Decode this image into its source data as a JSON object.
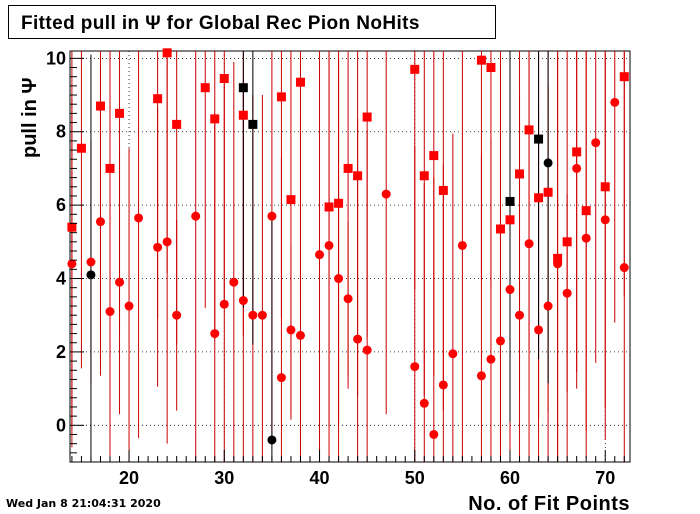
{
  "title": "Fitted pull in  Ψ  for Global Rec Pion NoHits",
  "footer_date": "Wed Jan  8 21:04:31 2020",
  "colors": {
    "primary_series": "#ff0000",
    "secondary_series": "#000000",
    "error_bar": "#cc0000"
  },
  "chart_data": {
    "type": "scatter",
    "title": "Fitted pull in  Ψ  for Global Rec Pion NoHits",
    "xlabel": "No. of Fit Points",
    "ylabel": "pull in  Ψ",
    "xlim": [
      13.8,
      72.6
    ],
    "ylim": [
      -1.0,
      10.2
    ],
    "xticks": [
      20,
      30,
      40,
      50,
      60,
      70
    ],
    "yticks": [
      0,
      2,
      4,
      6,
      8,
      10
    ],
    "grid": true,
    "series": [
      {
        "marker": "square",
        "color": "#ff0000",
        "points": [
          {
            "x": 14,
            "y": 5.4,
            "e": 6
          },
          {
            "x": 15,
            "y": 7.55,
            "e": 6
          },
          {
            "x": 17,
            "y": 8.7,
            "e": 6
          },
          {
            "x": 18,
            "y": 7.0,
            "e": 6
          },
          {
            "x": 19,
            "y": 8.5,
            "e": 6
          },
          {
            "x": 23,
            "y": 8.9,
            "e": 6
          },
          {
            "x": 24,
            "y": 10.15,
            "e": 6
          },
          {
            "x": 25,
            "y": 8.2,
            "e": 6
          },
          {
            "x": 28,
            "y": 9.2,
            "e": 6
          },
          {
            "x": 29,
            "y": 8.35,
            "e": 6
          },
          {
            "x": 30,
            "y": 9.45,
            "e": 6
          },
          {
            "x": 32,
            "y": 8.45,
            "e": 6
          },
          {
            "x": 36,
            "y": 8.95,
            "e": 6
          },
          {
            "x": 37,
            "y": 6.15,
            "e": 6
          },
          {
            "x": 38,
            "y": 9.35,
            "e": 6
          },
          {
            "x": 41,
            "y": 5.95,
            "e": 6
          },
          {
            "x": 42,
            "y": 6.05,
            "e": 6
          },
          {
            "x": 43,
            "y": 7.0,
            "e": 6
          },
          {
            "x": 44,
            "y": 6.8,
            "e": 6
          },
          {
            "x": 45,
            "y": 8.4,
            "e": 6
          },
          {
            "x": 50,
            "y": 9.7,
            "e": 6
          },
          {
            "x": 51,
            "y": 6.8,
            "e": 6
          },
          {
            "x": 52,
            "y": 7.35,
            "e": 6
          },
          {
            "x": 53,
            "y": 6.4,
            "e": 6
          },
          {
            "x": 57,
            "y": 9.95,
            "e": 6
          },
          {
            "x": 58,
            "y": 9.75,
            "e": 6
          },
          {
            "x": 59,
            "y": 5.35,
            "e": 6
          },
          {
            "x": 60,
            "y": 5.6,
            "e": 6
          },
          {
            "x": 61,
            "y": 6.85,
            "e": 6
          },
          {
            "x": 62,
            "y": 8.05,
            "e": 6
          },
          {
            "x": 63,
            "y": 6.2,
            "e": 6
          },
          {
            "x": 64,
            "y": 6.35,
            "e": 6
          },
          {
            "x": 65,
            "y": 4.55,
            "e": 6
          },
          {
            "x": 66,
            "y": 5.0,
            "e": 6
          },
          {
            "x": 67,
            "y": 7.45,
            "e": 6
          },
          {
            "x": 68,
            "y": 5.85,
            "e": 6
          },
          {
            "x": 70,
            "y": 6.5,
            "e": 6
          },
          {
            "x": 72,
            "y": 9.5,
            "e": 6
          }
        ]
      },
      {
        "marker": "circle",
        "color": "#ff0000",
        "points": [
          {
            "x": 14,
            "y": 4.4,
            "e": 4.5
          },
          {
            "x": 16,
            "y": 4.45,
            "e": 3.3
          },
          {
            "x": 17,
            "y": 5.55,
            "e": 4.2
          },
          {
            "x": 18,
            "y": 3.1,
            "e": 4.4
          },
          {
            "x": 19,
            "y": 3.9,
            "e": 3.6
          },
          {
            "x": 20,
            "y": 3.25,
            "e": 4.3
          },
          {
            "x": 21,
            "y": 5.65,
            "e": 6
          },
          {
            "x": 23,
            "y": 4.85,
            "e": 3.8
          },
          {
            "x": 24,
            "y": 5.0,
            "e": 5.5
          },
          {
            "x": 25,
            "y": 3.0,
            "e": 2.6
          },
          {
            "x": 27,
            "y": 5.7,
            "e": 7
          },
          {
            "x": 29,
            "y": 2.5,
            "e": 6
          },
          {
            "x": 30,
            "y": 3.3,
            "e": 6
          },
          {
            "x": 31,
            "y": 3.9,
            "e": 6
          },
          {
            "x": 32,
            "y": 3.4,
            "e": 6
          },
          {
            "x": 33,
            "y": 3.0,
            "e": 6
          },
          {
            "x": 34,
            "y": 3.0,
            "e": 6
          },
          {
            "x": 35,
            "y": 5.7,
            "e": 6
          },
          {
            "x": 36,
            "y": 1.3,
            "e": 6
          },
          {
            "x": 37,
            "y": 2.6,
            "e": 2.3
          },
          {
            "x": 38,
            "y": 2.45,
            "e": 6
          },
          {
            "x": 40,
            "y": 4.65,
            "e": 6
          },
          {
            "x": 41,
            "y": 4.9,
            "e": 6
          },
          {
            "x": 42,
            "y": 4.0,
            "e": 6
          },
          {
            "x": 43,
            "y": 3.45,
            "e": 2.1
          },
          {
            "x": 44,
            "y": 2.35,
            "e": 6
          },
          {
            "x": 45,
            "y": 2.05,
            "e": 6
          },
          {
            "x": 47,
            "y": 6.3,
            "e": 6
          },
          {
            "x": 50,
            "y": 1.6,
            "e": 6
          },
          {
            "x": 51,
            "y": 0.6,
            "e": 6
          },
          {
            "x": 52,
            "y": -0.25,
            "e": 7
          },
          {
            "x": 53,
            "y": 1.1,
            "e": 6
          },
          {
            "x": 54,
            "y": 1.95,
            "e": 6
          },
          {
            "x": 55,
            "y": 4.9,
            "e": 6
          },
          {
            "x": 57,
            "y": 1.35,
            "e": 6
          },
          {
            "x": 58,
            "y": 1.8,
            "e": 6
          },
          {
            "x": 59,
            "y": 2.3,
            "e": 6
          },
          {
            "x": 60,
            "y": 3.7,
            "e": 6
          },
          {
            "x": 61,
            "y": 3.0,
            "e": 6
          },
          {
            "x": 62,
            "y": 4.95,
            "e": 6
          },
          {
            "x": 63,
            "y": 2.6,
            "e": 6
          },
          {
            "x": 64,
            "y": 3.25,
            "e": 6
          },
          {
            "x": 65,
            "y": 4.4,
            "e": 6
          },
          {
            "x": 66,
            "y": 3.6,
            "e": 2.7
          },
          {
            "x": 67,
            "y": 7.0,
            "e": 6
          },
          {
            "x": 68,
            "y": 5.1,
            "e": 6
          },
          {
            "x": 69,
            "y": 7.7,
            "e": 6
          },
          {
            "x": 70,
            "y": 5.6,
            "e": 6
          },
          {
            "x": 71,
            "y": 8.8,
            "e": 6
          },
          {
            "x": 72,
            "y": 4.3,
            "e": 6
          }
        ]
      },
      {
        "marker": "square",
        "color": "#000000",
        "points": [
          {
            "x": 32,
            "y": 9.2,
            "e": 6
          },
          {
            "x": 33,
            "y": 8.2,
            "e": 6
          },
          {
            "x": 60,
            "y": 6.1,
            "e": 6
          },
          {
            "x": 63,
            "y": 7.8,
            "e": 6
          }
        ]
      },
      {
        "marker": "circle",
        "color": "#000000",
        "points": [
          {
            "x": 16,
            "y": 4.1,
            "e": 6
          },
          {
            "x": 35,
            "y": -0.4,
            "e": 6
          },
          {
            "x": 64,
            "y": 7.15,
            "e": 6
          }
        ]
      }
    ]
  }
}
